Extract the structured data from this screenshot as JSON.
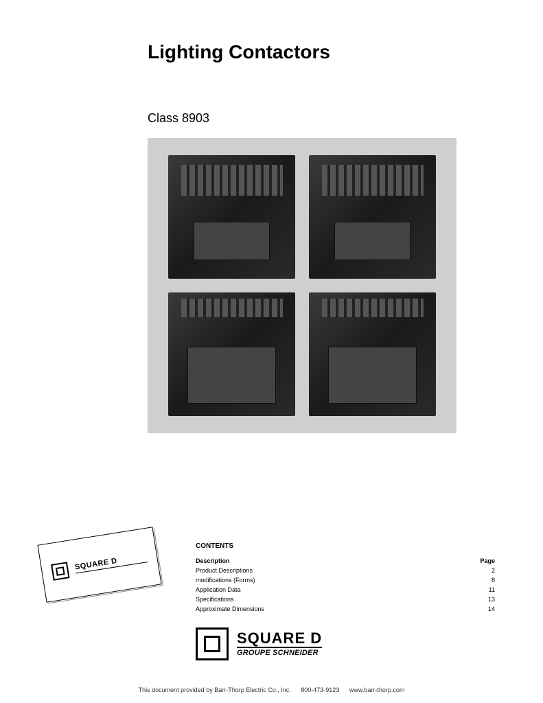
{
  "title": "Lighting Contactors",
  "subtitle": "Class 8903",
  "card_brand": "SQUARE D",
  "contents": {
    "heading": "CONTENTS",
    "header": {
      "label": "Description",
      "page": "Page"
    },
    "items": [
      {
        "label": "Product Descriptions",
        "page": "2"
      },
      {
        "label": "modifications (Forms)",
        "page": "8"
      },
      {
        "label": "Application Data",
        "page": "11"
      },
      {
        "label": "Specifications",
        "page": "13"
      },
      {
        "label": "Approximate Dimensions",
        "page": "14"
      }
    ]
  },
  "footer_brand": {
    "main": "SQUARE D",
    "sub": "GROUPE SCHNEIDER"
  },
  "provided": {
    "text": "This document provided by Barr-Thorp Electric Co., Inc.",
    "phone": "800-473-9123",
    "url": "www.barr-thorp.com"
  },
  "colors": {
    "page_bg": "#ffffff",
    "image_bg": "#cfcfcf",
    "text": "#000000"
  }
}
